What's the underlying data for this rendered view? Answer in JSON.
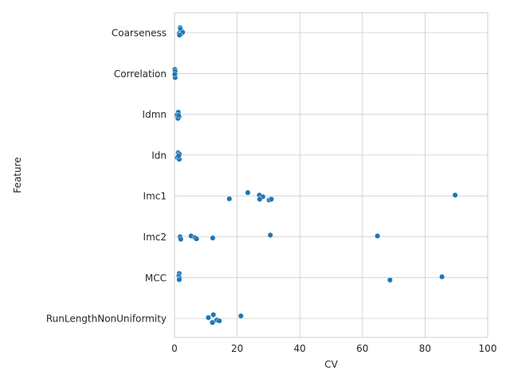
{
  "chart_data": {
    "type": "scatter",
    "xlabel": "CV",
    "ylabel": "Feature",
    "xlim": [
      0,
      100
    ],
    "xticks": [
      0,
      20,
      40,
      60,
      80,
      100
    ],
    "categories": [
      "Coarseness",
      "Correlation",
      "Idmn",
      "Idn",
      "Imc1",
      "Imc2",
      "MCC",
      "RunLengthNonUniformity"
    ],
    "grid": "x and y",
    "color": "#1f77b4",
    "points": [
      {
        "category": "Coarseness",
        "x": 1.8,
        "jitter": -0.12
      },
      {
        "category": "Coarseness",
        "x": 1.9,
        "jitter": -0.08
      },
      {
        "category": "Coarseness",
        "x": 1.5,
        "jitter": 0.02
      },
      {
        "category": "Coarseness",
        "x": 2.2,
        "jitter": 0.03
      },
      {
        "category": "Coarseness",
        "x": 1.7,
        "jitter": 0.05
      },
      {
        "category": "Coarseness",
        "x": 2.6,
        "jitter": -0.01
      },
      {
        "category": "Coarseness",
        "x": 1.6,
        "jitter": 0.06
      },
      {
        "category": "Correlation",
        "x": 0.1,
        "jitter": -0.1
      },
      {
        "category": "Correlation",
        "x": 0.2,
        "jitter": -0.05
      },
      {
        "category": "Correlation",
        "x": 0.1,
        "jitter": 0.05
      },
      {
        "category": "Correlation",
        "x": 0.2,
        "jitter": 0.1
      },
      {
        "category": "Correlation",
        "x": 0.1,
        "jitter": 0.02
      },
      {
        "category": "Idmn",
        "x": 1.2,
        "jitter": -0.05
      },
      {
        "category": "Idmn",
        "x": 0.8,
        "jitter": 0.02
      },
      {
        "category": "Idmn",
        "x": 1.5,
        "jitter": 0.06
      },
      {
        "category": "Idmn",
        "x": 1.1,
        "jitter": 0.1
      },
      {
        "category": "Idmn",
        "x": 1.3,
        "jitter": 0.03
      },
      {
        "category": "Idn",
        "x": 1.2,
        "jitter": -0.06
      },
      {
        "category": "Idn",
        "x": 1.6,
        "jitter": -0.02
      },
      {
        "category": "Idn",
        "x": 0.9,
        "jitter": 0.06
      },
      {
        "category": "Idn",
        "x": 1.5,
        "jitter": 0.1
      },
      {
        "category": "Idn",
        "x": 1.3,
        "jitter": 0.02
      },
      {
        "category": "Imc1",
        "x": 23.4,
        "jitter": -0.08
      },
      {
        "category": "Imc1",
        "x": 27.1,
        "jitter": -0.02
      },
      {
        "category": "Imc1",
        "x": 28.2,
        "jitter": 0.02
      },
      {
        "category": "Imc1",
        "x": 17.5,
        "jitter": 0.07
      },
      {
        "category": "Imc1",
        "x": 27.2,
        "jitter": 0.08
      },
      {
        "category": "Imc1",
        "x": 30.2,
        "jitter": 0.1
      },
      {
        "category": "Imc1",
        "x": 30.9,
        "jitter": 0.08
      },
      {
        "category": "Imc1",
        "x": 89.6,
        "jitter": -0.02
      },
      {
        "category": "Imc2",
        "x": 30.6,
        "jitter": -0.04
      },
      {
        "category": "Imc2",
        "x": 64.8,
        "jitter": -0.02
      },
      {
        "category": "Imc2",
        "x": 5.3,
        "jitter": -0.02
      },
      {
        "category": "Imc2",
        "x": 1.8,
        "jitter": 0.0
      },
      {
        "category": "Imc2",
        "x": 6.5,
        "jitter": 0.02
      },
      {
        "category": "Imc2",
        "x": 7.0,
        "jitter": 0.05
      },
      {
        "category": "Imc2",
        "x": 12.2,
        "jitter": 0.03
      },
      {
        "category": "Imc2",
        "x": 2.0,
        "jitter": 0.06
      },
      {
        "category": "MCC",
        "x": 1.5,
        "jitter": -0.1
      },
      {
        "category": "MCC",
        "x": 1.4,
        "jitter": -0.04
      },
      {
        "category": "MCC",
        "x": 1.6,
        "jitter": 0.02
      },
      {
        "category": "MCC",
        "x": 1.5,
        "jitter": 0.05
      },
      {
        "category": "MCC",
        "x": 85.4,
        "jitter": -0.02
      },
      {
        "category": "MCC",
        "x": 68.8,
        "jitter": 0.06
      },
      {
        "category": "RunLengthNonUniformity",
        "x": 21.2,
        "jitter": -0.06
      },
      {
        "category": "RunLengthNonUniformity",
        "x": 10.8,
        "jitter": -0.02
      },
      {
        "category": "RunLengthNonUniformity",
        "x": 12.4,
        "jitter": -0.09
      },
      {
        "category": "RunLengthNonUniformity",
        "x": 13.5,
        "jitter": 0.04
      },
      {
        "category": "RunLengthNonUniformity",
        "x": 14.3,
        "jitter": 0.06
      },
      {
        "category": "RunLengthNonUniformity",
        "x": 12.1,
        "jitter": 0.1
      }
    ]
  }
}
